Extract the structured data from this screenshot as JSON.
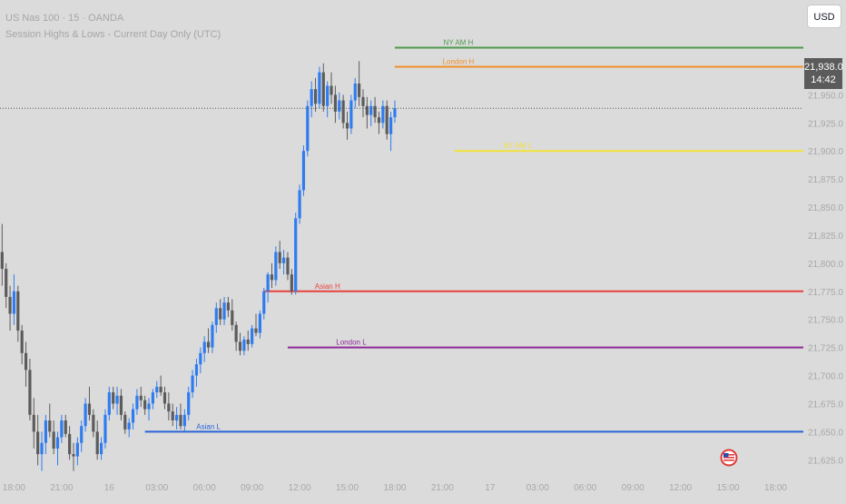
{
  "legend": {
    "line1": "US Nas 100 · 15 · OANDA",
    "line2": "Session Highs & Lows - Current Day Only (UTC)"
  },
  "currency": "USD",
  "last_price": {
    "price": "21,938.0",
    "countdown": "14:42",
    "value": 21938
  },
  "colors": {
    "background": "#dbdbdb",
    "up_candle": "#2f7cf0",
    "down_candle": "#5c5c5c",
    "axis_text": "#a8a8a8"
  },
  "chart_data": {
    "type": "candlestick",
    "ylim": [
      21605,
      22015
    ],
    "y_ticks": [
      {
        "v": 21950,
        "label": "21,950.0"
      },
      {
        "v": 21925,
        "label": "21,925.0"
      },
      {
        "v": 21900,
        "label": "21,900.0"
      },
      {
        "v": 21875,
        "label": "21,875.0"
      },
      {
        "v": 21850,
        "label": "21,850.0"
      },
      {
        "v": 21825,
        "label": "21,825.0"
      },
      {
        "v": 21800,
        "label": "21,800.0"
      },
      {
        "v": 21775,
        "label": "21,775.0"
      },
      {
        "v": 21750,
        "label": "21,750.0"
      },
      {
        "v": 21725,
        "label": "21,725.0"
      },
      {
        "v": 21700,
        "label": "21,700.0"
      },
      {
        "v": 21675,
        "label": "21,675.0"
      },
      {
        "v": 21650,
        "label": "21,650.0"
      },
      {
        "v": 21625,
        "label": "21,625.0"
      }
    ],
    "x_ticks": [
      {
        "t": 12,
        "label": "18:00"
      },
      {
        "t": 24,
        "label": "21:00"
      },
      {
        "t": 36,
        "label": "16"
      },
      {
        "t": 48,
        "label": "03:00"
      },
      {
        "t": 60,
        "label": "06:00"
      },
      {
        "t": 72,
        "label": "09:00"
      },
      {
        "t": 84,
        "label": "12:00"
      },
      {
        "t": 96,
        "label": "15:00"
      },
      {
        "t": 108,
        "label": "18:00"
      },
      {
        "t": 120,
        "label": "21:00"
      },
      {
        "t": 132,
        "label": "17"
      },
      {
        "t": 144,
        "label": "03:00"
      },
      {
        "t": 156,
        "label": "06:00"
      },
      {
        "t": 168,
        "label": "09:00"
      },
      {
        "t": 180,
        "label": "12:00"
      },
      {
        "t": 192,
        "label": "15:00"
      },
      {
        "t": 204,
        "label": "18:00"
      }
    ],
    "session_levels": [
      {
        "label": "NY AM H",
        "value": 21992,
        "color": "#4c9a4c",
        "t_start": 108
      },
      {
        "label": "London H",
        "value": 21975,
        "color": "#f0902a",
        "t_start": 108
      },
      {
        "label": "NY AM L",
        "value": 21900,
        "color": "#f2e23a",
        "t_start": 123
      },
      {
        "label": "Asian H",
        "value": 21775,
        "color": "#e8423c",
        "t_start": 75
      },
      {
        "label": "London L",
        "value": 21725,
        "color": "#8e2a98",
        "t_start": 81
      },
      {
        "label": "Asian L",
        "value": 21650,
        "color": "#2a64d8",
        "t_start": 45
      }
    ],
    "candles": [
      [
        21750,
        21760,
        21660,
        21700
      ],
      [
        21700,
        21722,
        21640,
        21660
      ],
      [
        21660,
        21680,
        21615,
        21625
      ],
      [
        21625,
        21710,
        21615,
        21700
      ],
      [
        21700,
        21760,
        21690,
        21745
      ],
      [
        21745,
        21790,
        21735,
        21780
      ],
      [
        21780,
        21800,
        21760,
        21790
      ],
      [
        21790,
        21830,
        21770,
        21825
      ],
      [
        21825,
        21840,
        21800,
        21810
      ],
      [
        21810,
        21835,
        21780,
        21795
      ],
      [
        21795,
        21800,
        21760,
        21770
      ],
      [
        21770,
        21780,
        21740,
        21755
      ],
      [
        21755,
        21790,
        21745,
        21775
      ],
      [
        21775,
        21780,
        21730,
        21740
      ],
      [
        21740,
        21745,
        21710,
        21720
      ],
      [
        21720,
        21730,
        21690,
        21705
      ],
      [
        21705,
        21715,
        21660,
        21665
      ],
      [
        21665,
        21680,
        21635,
        21650
      ],
      [
        21650,
        21665,
        21620,
        21630
      ],
      [
        21630,
        21650,
        21615,
        21640
      ],
      [
        21640,
        21665,
        21630,
        21660
      ],
      [
        21660,
        21675,
        21645,
        21650
      ],
      [
        21650,
        21660,
        21630,
        21635
      ],
      [
        21635,
        21650,
        21620,
        21645
      ],
      [
        21645,
        21665,
        21640,
        21660
      ],
      [
        21660,
        21665,
        21645,
        21648
      ],
      [
        21648,
        21655,
        21625,
        21630
      ],
      [
        21630,
        21640,
        21615,
        21628
      ],
      [
        21628,
        21645,
        21620,
        21640
      ],
      [
        21640,
        21660,
        21632,
        21655
      ],
      [
        21655,
        21680,
        21650,
        21675
      ],
      [
        21675,
        21690,
        21660,
        21665
      ],
      [
        21665,
        21670,
        21645,
        21650
      ],
      [
        21650,
        21660,
        21625,
        21630
      ],
      [
        21630,
        21645,
        21625,
        21640
      ],
      [
        21640,
        21670,
        21635,
        21665
      ],
      [
        21665,
        21690,
        21660,
        21685
      ],
      [
        21685,
        21690,
        21670,
        21675
      ],
      [
        21675,
        21690,
        21665,
        21682
      ],
      [
        21682,
        21688,
        21660,
        21665
      ],
      [
        21665,
        21668,
        21648,
        21652
      ],
      [
        21652,
        21662,
        21645,
        21658
      ],
      [
        21658,
        21675,
        21652,
        21670
      ],
      [
        21670,
        21688,
        21665,
        21682
      ],
      [
        21682,
        21690,
        21672,
        21678
      ],
      [
        21678,
        21682,
        21665,
        21670
      ],
      [
        21670,
        21680,
        21660,
        21675
      ],
      [
        21675,
        21688,
        21670,
        21685
      ],
      [
        21685,
        21695,
        21680,
        21690
      ],
      [
        21690,
        21700,
        21682,
        21685
      ],
      [
        21685,
        21690,
        21670,
        21675
      ],
      [
        21675,
        21685,
        21660,
        21668
      ],
      [
        21668,
        21675,
        21655,
        21660
      ],
      [
        21660,
        21672,
        21652,
        21665
      ],
      [
        21665,
        21675,
        21652,
        21655
      ],
      [
        21655,
        21670,
        21650,
        21665
      ],
      [
        21665,
        21690,
        21660,
        21685
      ],
      [
        21685,
        21705,
        21680,
        21700
      ],
      [
        21700,
        21715,
        21690,
        21710
      ],
      [
        21710,
        21725,
        21702,
        21720
      ],
      [
        21720,
        21735,
        21712,
        21730
      ],
      [
        21730,
        21742,
        21720,
        21725
      ],
      [
        21725,
        21748,
        21720,
        21745
      ],
      [
        21745,
        21765,
        21738,
        21760
      ],
      [
        21760,
        21768,
        21745,
        21750
      ],
      [
        21750,
        21770,
        21745,
        21765
      ],
      [
        21765,
        21770,
        21752,
        21758
      ],
      [
        21758,
        21768,
        21740,
        21745
      ],
      [
        21745,
        21748,
        21722,
        21730
      ],
      [
        21730,
        21738,
        21718,
        21722
      ],
      [
        21722,
        21735,
        21718,
        21732
      ],
      [
        21732,
        21740,
        21722,
        21728
      ],
      [
        21728,
        21745,
        21725,
        21742
      ],
      [
        21742,
        21755,
        21735,
        21738
      ],
      [
        21738,
        21758,
        21733,
        21755
      ],
      [
        21755,
        21778,
        21750,
        21775
      ],
      [
        21775,
        21792,
        21765,
        21790
      ],
      [
        21790,
        21800,
        21778,
        21785
      ],
      [
        21785,
        21815,
        21780,
        21810
      ],
      [
        21810,
        21820,
        21795,
        21800
      ],
      [
        21800,
        21812,
        21790,
        21805
      ],
      [
        21805,
        21810,
        21785,
        21790
      ],
      [
        21790,
        21795,
        21772,
        21775
      ],
      [
        21775,
        21845,
        21772,
        21840
      ],
      [
        21840,
        21870,
        21835,
        21865
      ],
      [
        21865,
        21905,
        21860,
        21900
      ],
      [
        21900,
        21945,
        21895,
        21940
      ],
      [
        21940,
        21962,
        21930,
        21955
      ],
      [
        21955,
        21965,
        21935,
        21942
      ],
      [
        21942,
        21975,
        21938,
        21970
      ],
      [
        21970,
        21978,
        21935,
        21940
      ],
      [
        21940,
        21962,
        21930,
        21958
      ],
      [
        21958,
        21970,
        21942,
        21950
      ],
      [
        21950,
        21958,
        21925,
        21935
      ],
      [
        21935,
        21952,
        21928,
        21945
      ],
      [
        21945,
        21950,
        21920,
        21925
      ],
      [
        21925,
        21935,
        21910,
        21920
      ],
      [
        21920,
        21950,
        21915,
        21945
      ],
      [
        21945,
        21965,
        21938,
        21960
      ],
      [
        21960,
        21980,
        21940,
        21948
      ],
      [
        21948,
        21955,
        21930,
        21940
      ],
      [
        21940,
        21948,
        21920,
        21932
      ],
      [
        21932,
        21945,
        21922,
        21940
      ],
      [
        21940,
        21948,
        21925,
        21930
      ],
      [
        21930,
        21935,
        21915,
        21925
      ],
      [
        21925,
        21945,
        21920,
        21940
      ],
      [
        21940,
        21945,
        21910,
        21915
      ],
      [
        21915,
        21935,
        21900,
        21930
      ],
      [
        21930,
        21945,
        21925,
        21938
      ]
    ]
  }
}
